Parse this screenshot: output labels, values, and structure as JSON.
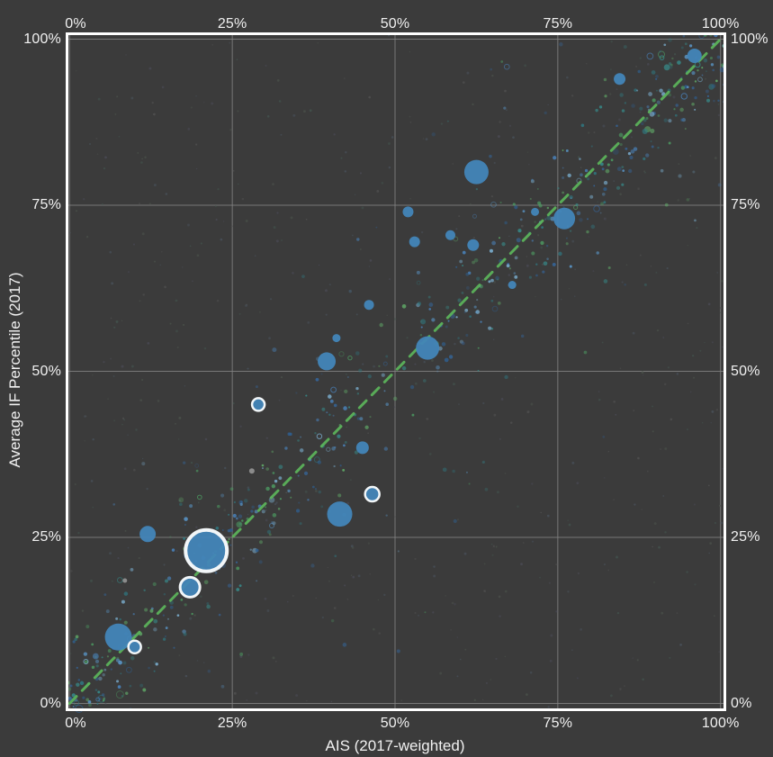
{
  "chart_data": {
    "type": "scatter",
    "title": "",
    "xlabel": "AIS (2017-weighted)",
    "ylabel": "Average IF Percentile (2017)",
    "xlim": [
      0,
      100
    ],
    "ylim": [
      0,
      100
    ],
    "grid": true,
    "legend": false,
    "axes": {
      "tick_values": [
        0,
        25,
        50,
        75,
        100
      ],
      "tick_labels": [
        "0%",
        "25%",
        "50%",
        "75%",
        "100%"
      ],
      "labels_on_sides": [
        "top",
        "bottom",
        "left",
        "right"
      ]
    },
    "reference_line": {
      "name": "y-equals-x-diagonal",
      "from": [
        0,
        0
      ],
      "to": [
        100,
        100
      ],
      "style": "dashed",
      "color": "#5db85c"
    },
    "style": {
      "background": "#3b3b3b",
      "border_color": "#ffffff",
      "grid_color": "#868686",
      "text_color": "#f1f1f1",
      "bubble_color": "#4285b8",
      "bubble_ring_color": "#f2f6f8"
    },
    "series": [
      {
        "name": "highlighted-journals",
        "marker": "bubble",
        "color": "#4285b8",
        "ring_color": "#f2f6f8",
        "points": [
          {
            "x": 96,
            "y": 97.5,
            "r": 8,
            "ring": false
          },
          {
            "x": 84.5,
            "y": 94,
            "r": 6.5,
            "ring": false
          },
          {
            "x": 62.5,
            "y": 80,
            "r": 13.5,
            "ring": false
          },
          {
            "x": 76,
            "y": 73,
            "r": 12,
            "ring": false
          },
          {
            "x": 71.5,
            "y": 74,
            "r": 4.5,
            "ring": false
          },
          {
            "x": 52,
            "y": 74,
            "r": 6,
            "ring": false
          },
          {
            "x": 58.5,
            "y": 70.5,
            "r": 5.5,
            "ring": false
          },
          {
            "x": 62,
            "y": 69,
            "r": 6.5,
            "ring": false
          },
          {
            "x": 53,
            "y": 69.5,
            "r": 6,
            "ring": false
          },
          {
            "x": 68,
            "y": 63,
            "r": 4.5,
            "ring": false
          },
          {
            "x": 46,
            "y": 60,
            "r": 5.5,
            "ring": false
          },
          {
            "x": 41,
            "y": 55,
            "r": 4.5,
            "ring": false
          },
          {
            "x": 55,
            "y": 53.5,
            "r": 13,
            "ring": false
          },
          {
            "x": 39.5,
            "y": 51.5,
            "r": 10,
            "ring": false
          },
          {
            "x": 29,
            "y": 45,
            "r": 7,
            "ring": true
          },
          {
            "x": 45,
            "y": 38.5,
            "r": 7,
            "ring": false
          },
          {
            "x": 46.5,
            "y": 31.5,
            "r": 8,
            "ring": true
          },
          {
            "x": 41.5,
            "y": 28.5,
            "r": 14,
            "ring": false
          },
          {
            "x": 12,
            "y": 25.5,
            "r": 9,
            "ring": false
          },
          {
            "x": 21,
            "y": 23,
            "r": 23,
            "ring": true
          },
          {
            "x": 18.5,
            "y": 17.5,
            "r": 11,
            "ring": true
          },
          {
            "x": 7.5,
            "y": 10,
            "r": 15,
            "ring": false
          },
          {
            "x": 10,
            "y": 8.5,
            "r": 7,
            "ring": true
          }
        ]
      },
      {
        "name": "small-gray-points",
        "marker": "dot",
        "color": "#9a9a9a",
        "points": [
          {
            "x": 28,
            "y": 35,
            "r": 3
          },
          {
            "x": 8.5,
            "y": 18.5,
            "r": 2.5
          }
        ]
      },
      {
        "name": "background-cloud",
        "marker": "dot",
        "procedural": true,
        "seed": 20177,
        "diagonal_count": 540,
        "wide_count": 150,
        "speckle_count": 520,
        "spread_pct": 3.6,
        "wide_spread_pct": 12,
        "palette": [
          "#4a86c2",
          "#35689f",
          "#5b9bd0",
          "#37908f",
          "#2f7b84",
          "#4d9f63",
          "#62b06a",
          "#7fb6d9",
          "#2f5f8f"
        ],
        "speckle_palette": [
          "#4b524b",
          "#49525c",
          "#515151",
          "#43544e",
          "#4a4a55"
        ]
      }
    ]
  }
}
